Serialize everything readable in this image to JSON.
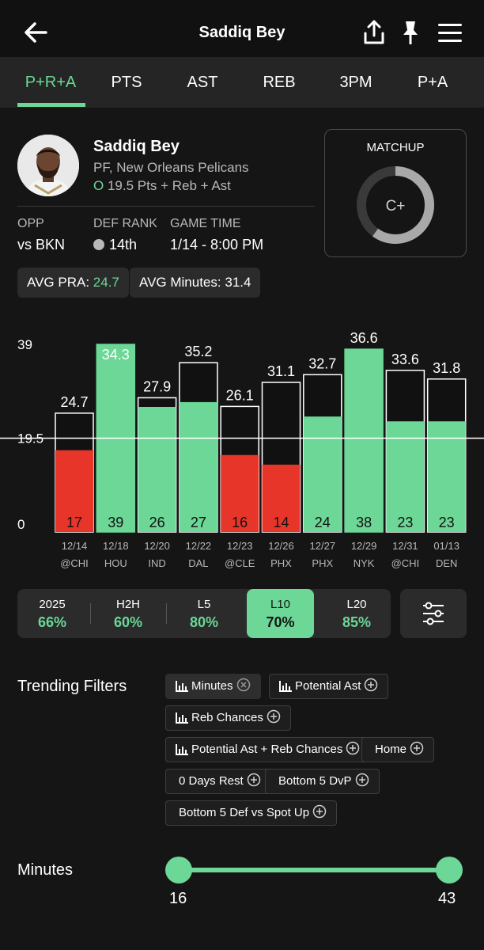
{
  "header": {
    "title": "Saddiq Bey"
  },
  "tabs": [
    "P+R+A",
    "PTS",
    "AST",
    "REB",
    "3PM",
    "P+A"
  ],
  "player": {
    "name": "Saddiq Bey",
    "team": "PF, New Orleans Pelicans",
    "line_marker": "O",
    "line": "19.5 Pts + Reb + Ast"
  },
  "stats": {
    "opp_label": "OPP",
    "opp_value": "vs BKN",
    "rank_label": "DEF RANK",
    "rank_value": "14th",
    "time_label": "GAME TIME",
    "time_value": "1/14 - 8:00 PM"
  },
  "matchup": {
    "label": "MATCHUP",
    "grade": "C+",
    "fill": 0.6
  },
  "averages": {
    "pra_label": "AVG PRA:",
    "pra_value": "24.7",
    "min_label": "AVG Minutes:",
    "min_value": "31.4"
  },
  "colors": {
    "accent": "#6cd796",
    "miss": "#e8352a",
    "background": "#151515"
  },
  "chart_data": {
    "type": "bar",
    "ylim": [
      0,
      39
    ],
    "y_ticks": [
      "39",
      "19.5",
      "0"
    ],
    "line_value": 19.5,
    "line_label": "19.5",
    "categories": [
      "12/14",
      "12/18",
      "12/20",
      "12/22",
      "12/23",
      "12/26",
      "12/27",
      "12/29",
      "12/31",
      "01/13"
    ],
    "opponents": [
      "@CHI",
      "HOU",
      "IND",
      "DAL",
      "@CLE",
      "PHX",
      "PHX",
      "NYK",
      "@CHI",
      "DEN"
    ],
    "series": [
      {
        "values": [
          17,
          39,
          26,
          27,
          16,
          14,
          24,
          38,
          23,
          23
        ]
      }
    ],
    "top_labels": [
      "24.7",
      "34.3",
      "27.9",
      "35.2",
      "26.1",
      "31.1",
      "32.7",
      "36.6",
      "33.6",
      "31.8"
    ],
    "top_values": [
      24.7,
      34.3,
      27.9,
      35.2,
      26.1,
      31.1,
      32.7,
      36.6,
      33.6,
      31.8
    ]
  },
  "splits": [
    {
      "label": "2025",
      "value": "66%"
    },
    {
      "label": "H2H",
      "value": "60%"
    },
    {
      "label": "L5",
      "value": "80%"
    },
    {
      "label": "L10",
      "value": "70%"
    },
    {
      "label": "L20",
      "value": "85%"
    }
  ],
  "trending": {
    "title": "Trending Filters",
    "chips": [
      "Minutes",
      "Potential Ast",
      "Reb Chances",
      "Potential Ast + Reb Chances",
      "Home",
      "0 Days Rest",
      "Bottom 5 DvP",
      "Bottom 5 Def vs Spot Up"
    ]
  },
  "minutes_filter": {
    "title": "Minutes",
    "min": "16",
    "max": "43"
  }
}
